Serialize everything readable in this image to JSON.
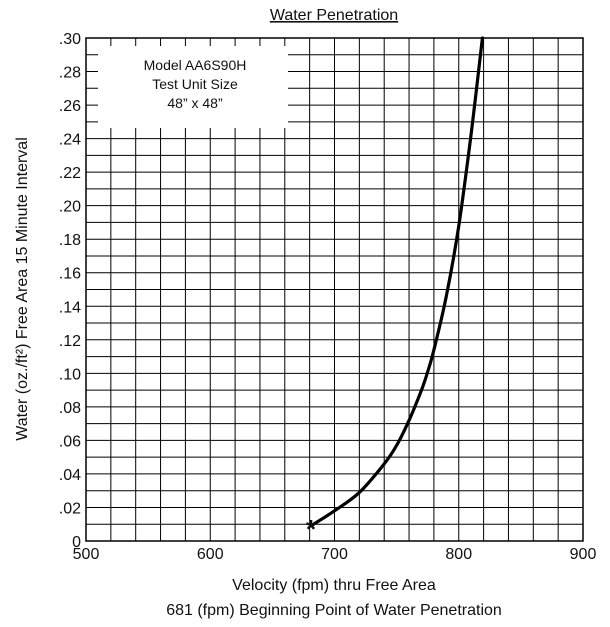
{
  "chart_data": {
    "type": "line",
    "title": "Water Penetration",
    "xlabel": "Velocity (fpm) thru Free Area",
    "ylabel": "Water (oz./ft²) Free Area 15 Minute Interval",
    "footnote": "681 (fpm) Beginning Point of Water Penetration",
    "xlim": [
      500,
      900
    ],
    "ylim": [
      0,
      0.3
    ],
    "x_ticks": [
      500,
      600,
      700,
      800,
      900
    ],
    "x_tick_labels": [
      "500",
      "600",
      "700",
      "800",
      "900"
    ],
    "y_ticks": [
      0,
      0.02,
      0.04,
      0.06,
      0.08,
      0.1,
      0.12,
      0.14,
      0.16,
      0.18,
      0.2,
      0.22,
      0.24,
      0.26,
      0.28,
      0.3
    ],
    "y_tick_labels": [
      "0",
      ".02",
      ".04",
      ".06",
      ".08",
      ".10",
      ".12",
      ".14",
      ".16",
      ".18",
      ".20",
      ".22",
      ".24",
      ".26",
      ".28",
      ".30"
    ],
    "grid": true,
    "legend_box": {
      "lines": [
        "Model AA6S90H",
        "Test Unit Size",
        "48” x 48”"
      ],
      "placement": "top-left"
    },
    "start_marker": {
      "x": 681,
      "y": 0.009,
      "symbol": "*"
    },
    "series": [
      {
        "color": "#000000",
        "x": [
          681,
          700,
          720,
          740,
          750,
          760,
          770,
          775,
          780,
          790,
          800,
          810,
          819
        ],
        "y": [
          0.009,
          0.018,
          0.029,
          0.046,
          0.057,
          0.072,
          0.09,
          0.101,
          0.114,
          0.146,
          0.188,
          0.243,
          0.3
        ]
      }
    ]
  }
}
